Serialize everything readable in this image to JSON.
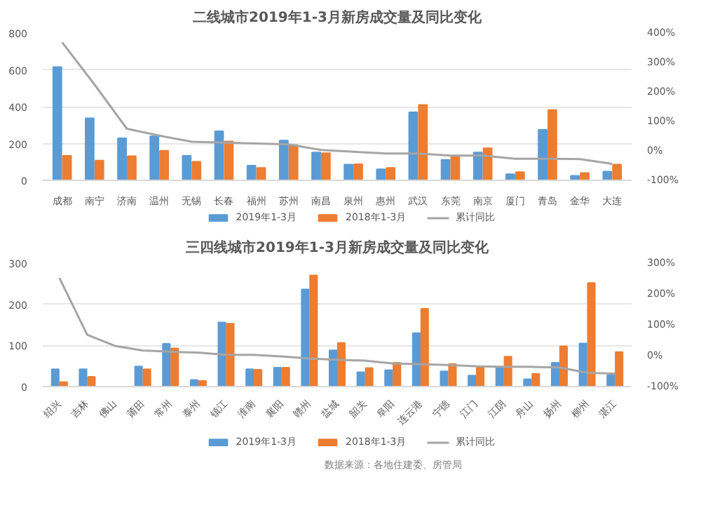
{
  "chart_data": [
    {
      "type": "bar",
      "title": "二线城市2019年1-3月新房成交量及同比变化",
      "categories": [
        "成都",
        "南宁",
        "济南",
        "温州",
        "无锡",
        "长春",
        "福州",
        "苏州",
        "南昌",
        "泉州",
        "惠州",
        "武汉",
        "东莞",
        "南京",
        "厦门",
        "青岛",
        "金华",
        "大连"
      ],
      "series": [
        {
          "name": "2019年1-3月",
          "color": "#5b9bd5",
          "values": [
            615,
            337,
            229,
            239,
            133,
            267,
            80,
            216,
            151,
            86,
            60,
            370,
            111,
            151,
            33,
            274,
            25,
            48
          ]
        },
        {
          "name": "2018年1-3月",
          "color": "#ed7d31",
          "values": [
            133,
            108,
            131,
            161,
            101,
            211,
            68,
            191,
            148,
            88,
            68,
            410,
            128,
            174,
            45,
            382,
            40,
            86
          ]
        },
        {
          "name": "累计同比",
          "type": "line",
          "axis": "y2",
          "color": "#a5a5a5",
          "values": [
            368,
            225,
            75,
            52,
            31,
            28,
            25,
            22,
            3,
            -3,
            -9,
            -9,
            -16,
            -16,
            -27,
            -27,
            -28,
            -44
          ]
        }
      ],
      "ylim": [
        0,
        800
      ],
      "yticks": [
        0,
        200,
        400,
        600,
        800
      ],
      "y2lim": [
        -100,
        400
      ],
      "y2ticks": [
        {
          "value": -100,
          "label": "-100%"
        },
        {
          "value": 0,
          "label": "0%"
        },
        {
          "value": 100,
          "label": "100%"
        },
        {
          "value": 200,
          "label": "200%"
        },
        {
          "value": 300,
          "label": "300%"
        },
        {
          "value": 400,
          "label": "400%"
        }
      ],
      "grid": "y",
      "legend": "bottom",
      "marker": "none"
    },
    {
      "type": "bar",
      "title": "三四线城市2019年1-3月新房成交量及同比变化",
      "categories": [
        "绍兴",
        "吉林",
        "佛山",
        "莆田",
        "常州",
        "泰州",
        "镇江",
        "淮南",
        "襄阳",
        "赣州",
        "盐城",
        "韶关",
        "阜阳",
        "连云港",
        "宁德",
        "江门",
        "江阴",
        "舟山",
        "扬州",
        "柳州",
        "湛江"
      ],
      "series": [
        {
          "name": "2019年1-3月",
          "color": "#5b9bd5",
          "values": [
            42,
            42,
            null,
            49,
            104,
            16,
            156,
            42,
            46,
            236,
            88,
            35,
            40,
            130,
            37,
            27,
            45,
            18,
            58,
            105,
            28
          ]
        },
        {
          "name": "2018年1-3月",
          "color": "#ed7d31",
          "values": [
            11,
            24,
            null,
            42,
            93,
            14,
            153,
            41,
            46,
            270,
            106,
            45,
            58,
            189,
            55,
            46,
            73,
            31,
            98,
            252,
            84
          ]
        },
        {
          "name": "累计同比",
          "type": "line",
          "axis": "y2",
          "color": "#a5a5a5",
          "values": [
            252,
            68,
            32,
            17,
            13,
            10,
            3,
            3,
            -2,
            -9,
            -13,
            -16,
            -25,
            -27,
            -30,
            -34,
            -36,
            -36,
            -38,
            -55,
            -58
          ]
        }
      ],
      "ylim": [
        0,
        300
      ],
      "yticks": [
        0,
        100,
        200,
        300
      ],
      "y2lim": [
        -100,
        300
      ],
      "y2ticks": [
        {
          "value": -100,
          "label": "-100%"
        },
        {
          "value": 0,
          "label": "0%"
        },
        {
          "value": 100,
          "label": "100%"
        },
        {
          "value": 200,
          "label": "200%"
        },
        {
          "value": 300,
          "label": "300%"
        }
      ],
      "grid": "y",
      "legend": "bottom",
      "marker": "none",
      "annotations": [
        "数据来源：各地住建委、房管局"
      ]
    }
  ]
}
